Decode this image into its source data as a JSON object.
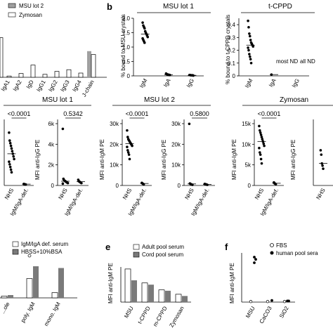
{
  "panels": {
    "a": {
      "legend": [
        {
          "label": "MSU lot 2",
          "color": "#a0a0a0",
          "style": "filled"
        },
        {
          "label": "Zymosan",
          "color": "#ffffff",
          "style": "open"
        }
      ]
    },
    "b": {
      "label": "b",
      "left_title": "MSU lot 1",
      "right_title": "t-CPPD",
      "ND_notes": [
        "most ND",
        "all ND"
      ]
    },
    "e": {
      "label": "e"
    },
    "f": {
      "label": "f"
    }
  },
  "chart_data": [
    {
      "id": "a",
      "type": "bar",
      "categories": [
        "IgA1",
        "IgA2",
        "IgD",
        "IgG1",
        "IgG2",
        "IgG3",
        "IgG4",
        "J-chain"
      ],
      "series": [
        {
          "name": "MSU lot 2",
          "values": [
            null,
            null,
            null,
            null,
            null,
            null,
            null,
            0.62
          ]
        },
        {
          "name": "Zymosan",
          "values": [
            0.03,
            0.09,
            0.29,
            0.07,
            0.14,
            0.18,
            0.1,
            0.54
          ]
        }
      ],
      "partial_bar_at_left": 0.94,
      "ylim": [
        0,
        1
      ]
    },
    {
      "id": "b-left",
      "type": "scatter",
      "title": "MSU lot 1",
      "ylabel": "% bound to MSU crystals",
      "categories": [
        "IgM",
        "IgA",
        "IgG"
      ],
      "yticks": [
        0,
        0.5,
        1.0,
        1.5,
        2.0
      ],
      "ylim": [
        0,
        2.0
      ],
      "series": [
        {
          "name": "IgM",
          "values": [
            1.85,
            1.75,
            1.7,
            1.65,
            1.55,
            1.5,
            1.45,
            1.4,
            1.35,
            1.3,
            1.25,
            1.2,
            1.15
          ]
        },
        {
          "name": "IgA",
          "values": [
            0.08,
            0.06,
            0.05,
            0.04,
            0.04,
            0.03,
            0.03
          ]
        },
        {
          "name": "IgG",
          "values": [
            0.03,
            0.03,
            0.02,
            0.02,
            0.02,
            0.02,
            0.01
          ]
        }
      ]
    },
    {
      "id": "b-right",
      "type": "scatter",
      "title": "t-CPPD",
      "ylabel": "% bound to t-CPPD crystals",
      "categories": [
        "IgM",
        "IgA",
        "IgG"
      ],
      "yticks": [
        0,
        0.1,
        0.2,
        0.3,
        0.4
      ],
      "ylim": [
        0,
        0.45
      ],
      "series": [
        {
          "name": "IgM",
          "values": [
            0.43,
            0.38,
            0.33,
            0.31,
            0.28,
            0.26,
            0.25,
            0.24,
            0.23,
            0.22,
            0.2,
            0.17,
            0.15,
            0.13,
            0.1
          ]
        },
        {
          "name": "IgA",
          "values": [
            0.01
          ]
        },
        {
          "name": "IgG",
          "values": []
        }
      ]
    },
    {
      "id": "c-left",
      "type": "scatter",
      "ylabel": "",
      "categories": [
        "NHS",
        "IgM/IgA-def."
      ],
      "ylim": [
        0,
        25
      ],
      "series": [
        {
          "name": "NHS",
          "values": [
            20,
            17,
            16,
            15,
            14,
            13,
            12,
            11,
            10,
            9,
            8,
            7,
            6,
            5
          ]
        },
        {
          "name": "IgM/IgA-def.",
          "values": [
            0.6,
            0.5,
            0.4,
            0.4
          ]
        }
      ],
      "significance": "<0.0001"
    },
    {
      "id": "c-mid",
      "type": "scatter",
      "ylabel": "MFI anti-IgG PE",
      "categories": [
        "NHS",
        "IgM/IgA-def."
      ],
      "yticks": [
        0,
        "2k",
        "4k",
        "6k"
      ],
      "ylim": [
        0,
        7000
      ],
      "series": [
        {
          "name": "NHS",
          "values": [
            6000,
            700,
            550,
            500,
            450,
            400,
            350,
            300,
            250,
            200
          ]
        },
        {
          "name": "IgM/IgA-def.",
          "values": [
            600,
            450,
            400,
            350,
            300,
            250
          ]
        }
      ],
      "significance": "0.5342"
    },
    {
      "id": "d-left",
      "type": "scatter",
      "title": "MSU lot 2",
      "ylabel": "MFI anti-IgM PE",
      "categories": [
        "NHS",
        "IgM/IgA-def."
      ],
      "yticks": [
        0,
        "10k",
        "20k",
        "30k"
      ],
      "ylim": [
        0,
        30000
      ],
      "series": [
        {
          "name": "NHS",
          "values": [
            25000,
            22000,
            21000,
            20500,
            20000,
            19500,
            19000,
            18500,
            18000,
            17500,
            16000,
            15000,
            14000,
            12000
          ]
        },
        {
          "name": "IgM/IgA-def.",
          "values": [
            1200,
            900,
            700,
            500
          ]
        }
      ],
      "significance": "<0.0001"
    },
    {
      "id": "d-right",
      "type": "scatter",
      "ylabel": "MFI anti-IgG PE",
      "categories": [
        "NHS",
        "IgM/IgA-def."
      ],
      "yticks": [
        0,
        "10k",
        "20k",
        "30k"
      ],
      "ylim": [
        0,
        30000
      ],
      "series": [
        {
          "name": "NHS",
          "values": [
            28000,
            900,
            700,
            500,
            400,
            300
          ]
        },
        {
          "name": "IgM/IgA-def.",
          "values": [
            700,
            600,
            500,
            400,
            300
          ]
        }
      ],
      "significance": "0.5800"
    },
    {
      "id": "zymosan-left",
      "type": "scatter",
      "title": "Zymosan",
      "ylabel": "MFI anti-IgM PE",
      "categories": [
        "NHS",
        "IgM/IgA-def."
      ],
      "yticks": [
        0,
        "5k",
        "10k",
        "15k"
      ],
      "ylim": [
        0,
        15000
      ],
      "series": [
        {
          "name": "NHS",
          "values": [
            13500,
            12500,
            12000,
            11500,
            11000,
            10500,
            10000,
            9500,
            9000,
            8500,
            7500,
            7000,
            6000,
            5000
          ]
        },
        {
          "name": "IgM/IgA-def.",
          "values": [
            700,
            500,
            400,
            300
          ]
        }
      ],
      "significance": "<0.0001"
    },
    {
      "id": "zymosan-right",
      "type": "scatter",
      "ylabel": "MFI anti-IgG PE",
      "categories": [
        "NHS"
      ],
      "ylim": [
        0,
        15000
      ],
      "series": [
        {
          "name": "NHS",
          "values": [
            8000,
            7000,
            5000,
            4500,
            3800
          ]
        }
      ]
    },
    {
      "id": "lower-left",
      "type": "bar",
      "categories": [
        "...ole",
        "poly. IgM",
        "mono. IgM"
      ],
      "series": [
        {
          "name": "IgM/IgA def. serum",
          "values": [
            0.05,
            0.55,
            0.15
          ]
        },
        {
          "name": "HBSS+10%BSA",
          "values": [
            0.08,
            0.9,
            0.85
          ]
        }
      ],
      "ylim": [
        0,
        1.3
      ]
    },
    {
      "id": "e",
      "type": "bar",
      "ylabel": "MFI anti-IgM PE",
      "categories": [
        "MSU",
        "t-CPPD",
        "m-CPPD",
        "Zymosan"
      ],
      "series": [
        {
          "name": "Adult pool serum",
          "values": [
            0.76,
            0.44,
            0.28,
            0.18
          ]
        },
        {
          "name": "Cord pool serum",
          "values": [
            0.5,
            0.4,
            0.26,
            0.14
          ]
        }
      ],
      "ylim": [
        0,
        1
      ]
    },
    {
      "id": "f",
      "type": "scatter",
      "ylabel": "MFI anti-IgM PE",
      "categories": [
        "MSU",
        "CaCO3",
        "SiO2"
      ],
      "series": [
        {
          "name": "FBS",
          "values": [
            0.01,
            0.01,
            0.01
          ]
        },
        {
          "name": "human pool sera",
          "values": [
            0.8,
            0.76,
            0.7,
            0.03,
            0.02,
            0.02
          ]
        }
      ],
      "ylim": [
        0,
        1
      ]
    }
  ]
}
